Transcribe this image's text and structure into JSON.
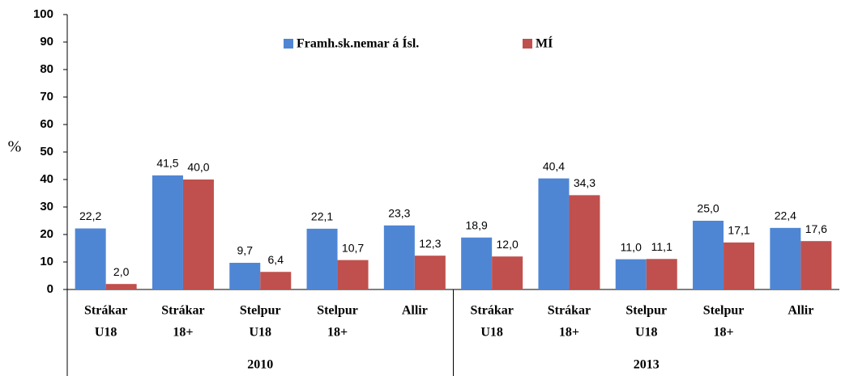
{
  "chart_data": {
    "type": "bar",
    "ylabel": "%",
    "categories": [
      [
        "Strákar",
        "U18"
      ],
      [
        "Strákar",
        "18+"
      ],
      [
        "Stelpur",
        "U18"
      ],
      [
        "Stelpur",
        "18+"
      ],
      [
        "Allir"
      ],
      [
        "Strákar",
        "U18"
      ],
      [
        "Strákar",
        "18+"
      ],
      [
        "Stelpur",
        "U18"
      ],
      [
        "Stelpur",
        "18+"
      ],
      [
        "Allir"
      ]
    ],
    "group_labels": [
      "2010",
      "2013"
    ],
    "series": [
      {
        "name": "Framh.sk.nemar á Ísl.",
        "color": "#4f86d4",
        "values": [
          22.2,
          41.5,
          9.7,
          22.1,
          23.3,
          18.9,
          40.4,
          11.0,
          25.0,
          22.4
        ],
        "value_labels": [
          "22,2",
          "41,5",
          "9,7",
          "22,1",
          "23,3",
          "18,9",
          "40,4",
          "11,0",
          "25,0",
          "22,4"
        ]
      },
      {
        "name": "MÍ",
        "color": "#c0504d",
        "values": [
          2.0,
          40.0,
          6.4,
          10.7,
          12.3,
          12.0,
          34.3,
          11.1,
          17.1,
          17.6
        ],
        "value_labels": [
          "2,0",
          "40,0",
          "6,4",
          "10,7",
          "12,3",
          "12,0",
          "34,3",
          "11,1",
          "17,1",
          "17,6"
        ]
      }
    ],
    "ylim": [
      0,
      100
    ],
    "yticks": [
      0,
      10,
      20,
      30,
      40,
      50,
      60,
      70,
      80,
      90,
      100
    ]
  }
}
